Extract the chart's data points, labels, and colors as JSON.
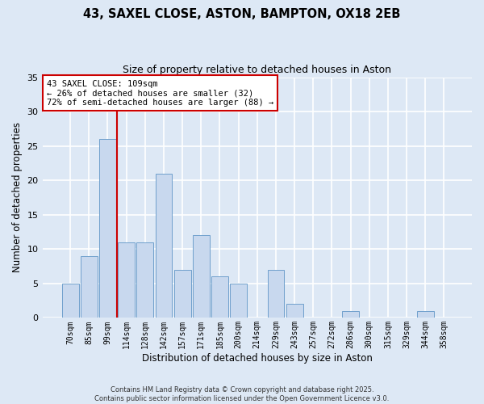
{
  "title": "43, SAXEL CLOSE, ASTON, BAMPTON, OX18 2EB",
  "subtitle": "Size of property relative to detached houses in Aston",
  "xlabel": "Distribution of detached houses by size in Aston",
  "ylabel": "Number of detached properties",
  "bar_labels": [
    "70sqm",
    "85sqm",
    "99sqm",
    "114sqm",
    "128sqm",
    "142sqm",
    "157sqm",
    "171sqm",
    "185sqm",
    "200sqm",
    "214sqm",
    "229sqm",
    "243sqm",
    "257sqm",
    "272sqm",
    "286sqm",
    "300sqm",
    "315sqm",
    "329sqm",
    "344sqm",
    "358sqm"
  ],
  "bar_values": [
    5,
    9,
    26,
    11,
    11,
    21,
    7,
    12,
    6,
    5,
    0,
    7,
    2,
    0,
    0,
    1,
    0,
    0,
    0,
    1,
    0
  ],
  "bar_color": "#c8d8ee",
  "bar_edge_color": "#6fa0cc",
  "vline_color": "#cc0000",
  "vline_x_index": 2.5,
  "ylim": [
    0,
    35
  ],
  "yticks": [
    0,
    5,
    10,
    15,
    20,
    25,
    30,
    35
  ],
  "annotation_line1": "43 SAXEL CLOSE: 109sqm",
  "annotation_line2": "← 26% of detached houses are smaller (32)",
  "annotation_line3": "72% of semi-detached houses are larger (88) →",
  "annotation_box_facecolor": "#ffffff",
  "annotation_box_edgecolor": "#cc0000",
  "bg_color": "#dde8f5",
  "plot_bg_color": "#dde8f5",
  "grid_color": "#ffffff",
  "footer1": "Contains HM Land Registry data © Crown copyright and database right 2025.",
  "footer2": "Contains public sector information licensed under the Open Government Licence v3.0."
}
